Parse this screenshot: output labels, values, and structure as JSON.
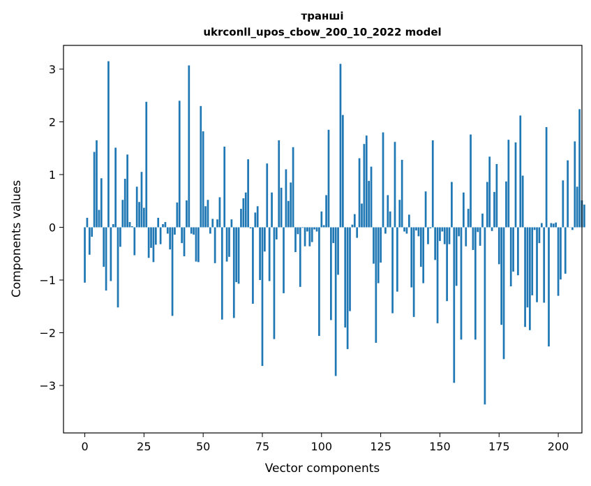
{
  "chart_data": {
    "type": "bar",
    "title": "транші",
    "subtitle": "ukrconll_upos_cbow_200_10_2022 model",
    "xlabel": "Vector components",
    "ylabel": "Components values",
    "xlim": [
      -9,
      210
    ],
    "ylim": [
      -3.9,
      3.45
    ],
    "xticks": [
      0,
      25,
      50,
      75,
      100,
      125,
      150,
      175,
      200
    ],
    "yticks": [
      -3,
      -2,
      -1,
      0,
      1,
      2,
      3
    ],
    "grid": false,
    "bar_color": "#1f77b4",
    "values": [
      -1.05,
      0.18,
      -0.52,
      -0.18,
      1.43,
      1.65,
      0.33,
      0.93,
      -0.75,
      -1.2,
      3.15,
      -1.02,
      0.06,
      1.51,
      -1.52,
      -0.37,
      0.52,
      0.92,
      1.38,
      0.1,
      0.02,
      -0.53,
      0.77,
      0.48,
      1.05,
      0.37,
      2.38,
      -0.58,
      -0.39,
      -0.66,
      -0.33,
      0.18,
      -0.32,
      0.06,
      0.1,
      -0.12,
      -0.42,
      -1.68,
      -0.14,
      0.47,
      2.4,
      -0.3,
      -0.55,
      0.51,
      3.07,
      -0.12,
      -0.14,
      -0.65,
      -0.66,
      2.3,
      1.82,
      0.4,
      0.52,
      -0.12,
      0.16,
      -0.68,
      0.15,
      0.57,
      -1.75,
      1.53,
      -0.65,
      -0.56,
      0.15,
      -1.72,
      -1.04,
      -1.07,
      0.35,
      0.55,
      0.66,
      1.29,
      -0.02,
      -1.45,
      0.28,
      0.4,
      -1.0,
      -2.63,
      -0.46,
      1.21,
      -1.02,
      0.66,
      -2.12,
      -0.23,
      1.65,
      0.75,
      -1.25,
      1.1,
      0.5,
      0.85,
      1.52,
      -0.47,
      -0.13,
      -1.13,
      -0.01,
      -0.36,
      -0.08,
      -0.36,
      -0.28,
      -0.04,
      -0.08,
      -2.06,
      0.3,
      0.04,
      0.61,
      1.85,
      -1.76,
      -0.3,
      -2.82,
      -0.9,
      3.1,
      2.13,
      -1.9,
      -2.31,
      -1.59,
      0.05,
      0.25,
      -0.2,
      1.31,
      0.45,
      1.58,
      1.74,
      0.88,
      1.15,
      -0.69,
      -2.19,
      -1.06,
      -0.67,
      1.8,
      -0.12,
      0.61,
      0.3,
      -1.63,
      1.62,
      -1.22,
      0.52,
      1.28,
      -0.08,
      -0.12,
      0.24,
      -1.14,
      -1.7,
      -0.06,
      -0.17,
      -0.75,
      -1.06,
      0.68,
      -0.32,
      -0.02,
      1.65,
      -0.62,
      -1.82,
      -0.26,
      -0.08,
      -0.32,
      -1.4,
      -0.32,
      0.86,
      -2.95,
      -1.11,
      -0.17,
      -2.13,
      0.66,
      -0.36,
      0.35,
      1.76,
      -0.43,
      -2.13,
      -0.09,
      -0.35,
      0.26,
      -3.36,
      0.86,
      1.34,
      -0.07,
      0.67,
      1.2,
      -0.7,
      -1.85,
      -2.5,
      0.87,
      1.66,
      -1.12,
      -0.84,
      1.61,
      -0.91,
      2.12,
      0.98,
      -1.89,
      -1.52,
      -1.95,
      -1.29,
      -0.05,
      -1.42,
      -0.3,
      0.08,
      -1.43,
      1.9,
      -2.26,
      0.08,
      0.07,
      0.09,
      -1.3,
      -0.99,
      0.89,
      -0.88,
      1.27,
      0.0,
      -0.05,
      1.63,
      0.77,
      2.24,
      0.51,
      0.43
    ]
  }
}
